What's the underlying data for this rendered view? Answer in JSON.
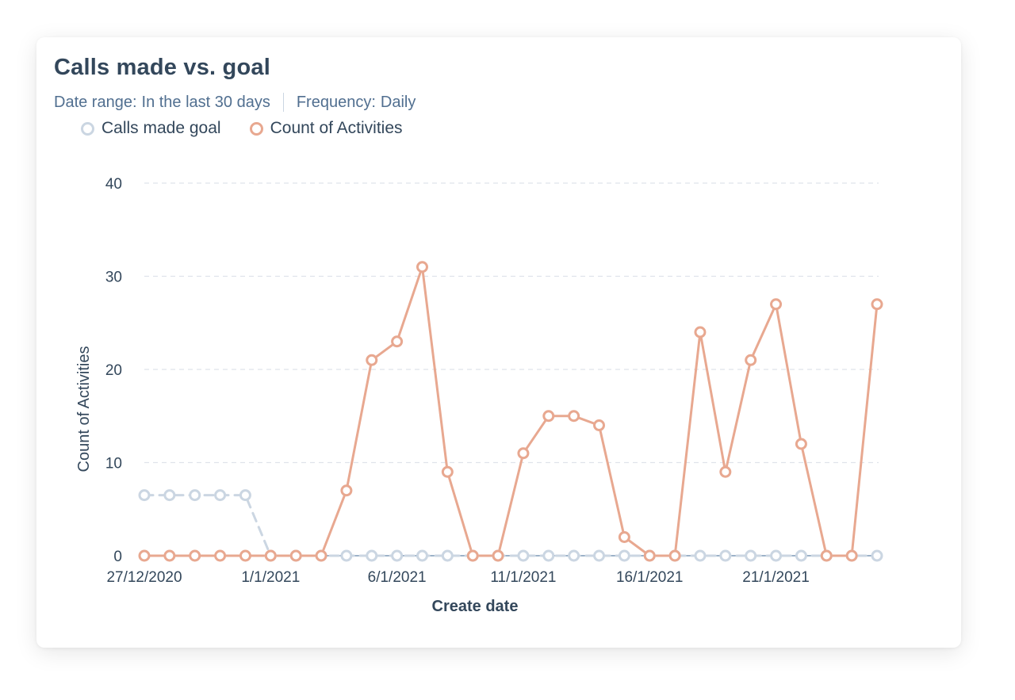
{
  "header": {
    "title": "Calls made vs. goal",
    "date_range_key": "Date range:",
    "date_range_value": "In the last 30 days",
    "frequency_key": "Frequency:",
    "frequency_value": "Daily"
  },
  "legend": [
    {
      "label": "Calls made goal",
      "color": "#cbd6e2"
    },
    {
      "label": "Count of Activities",
      "color": "#e8a890"
    }
  ],
  "chart_data": {
    "type": "line",
    "xlabel": "Create date",
    "ylabel": "Count of Activities",
    "ylim": [
      0,
      40
    ],
    "yticks": [
      0,
      10,
      20,
      30,
      40
    ],
    "grid": true,
    "legend_position": "top-left",
    "x_start_date": "2020-12-27",
    "x": [
      "27/12/2020",
      "28/12/2020",
      "29/12/2020",
      "30/12/2020",
      "31/12/2020",
      "1/1/2021",
      "2/1/2021",
      "3/1/2021",
      "4/1/2021",
      "5/1/2021",
      "6/1/2021",
      "7/1/2021",
      "8/1/2021",
      "9/1/2021",
      "10/1/2021",
      "11/1/2021",
      "12/1/2021",
      "13/1/2021",
      "14/1/2021",
      "15/1/2021",
      "16/1/2021",
      "17/1/2021",
      "18/1/2021",
      "19/1/2021",
      "20/1/2021",
      "21/1/2021",
      "22/1/2021",
      "23/1/2021",
      "24/1/2021",
      "25/1/2021"
    ],
    "xtick_labels": [
      "27/12/2020",
      "1/1/2021",
      "6/1/2021",
      "11/1/2021",
      "16/1/2021",
      "21/1/2021"
    ],
    "xtick_indices": [
      0,
      5,
      10,
      15,
      20,
      25
    ],
    "series": [
      {
        "name": "Calls made goal",
        "color": "#cbd6e2",
        "dashed": true,
        "values": [
          6.5,
          6.5,
          6.5,
          6.5,
          6.5,
          0,
          0,
          0,
          0,
          0,
          0,
          0,
          0,
          0,
          0,
          0,
          0,
          0,
          0,
          0,
          0,
          0,
          0,
          0,
          0,
          0,
          0,
          0,
          0,
          0
        ]
      },
      {
        "name": "Count of Activities",
        "color": "#e8a890",
        "dashed": false,
        "values": [
          0,
          0,
          0,
          0,
          0,
          0,
          0,
          0,
          7,
          21,
          23,
          31,
          9,
          0,
          0,
          11,
          15,
          15,
          14,
          2,
          0,
          0,
          24,
          9,
          21,
          27,
          12,
          0,
          0,
          27
        ]
      }
    ]
  }
}
